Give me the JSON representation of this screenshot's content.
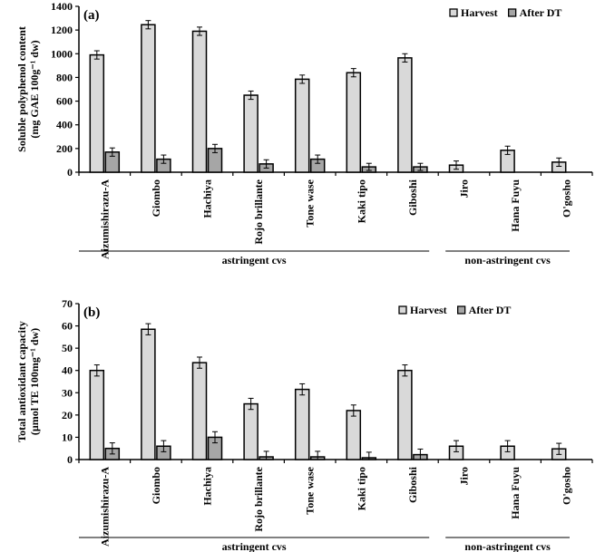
{
  "chart_data": [
    {
      "type": "bar",
      "panel_label": "(a)",
      "ylabel_line1": "Soluble polyphenol content",
      "ylabel_line2": "(mg GAE 100g⁻¹ dw)",
      "ylim": [
        0,
        1400
      ],
      "yticks": [
        0,
        200,
        400,
        600,
        800,
        1000,
        1200,
        1400
      ],
      "legend_position": "top-right",
      "categories": [
        "Aizumishirazu-A",
        "Giombo",
        "Hachiya",
        "Rojo brillante",
        "Tone wase",
        "Kaki tipo",
        "Giboshi",
        "Jiro",
        "Hana Fuyu",
        "O'gosho"
      ],
      "groups": [
        {
          "label": "astringent cvs",
          "from": 0,
          "to": 6
        },
        {
          "label": "non-astringent cvs",
          "from": 7,
          "to": 9
        }
      ],
      "series": [
        {
          "name": "Harvest",
          "color": "#d9d9d9",
          "values": [
            990,
            1245,
            1190,
            650,
            785,
            840,
            965,
            60,
            185,
            85
          ],
          "errors": [
            35,
            35,
            35,
            35,
            35,
            35,
            35,
            35,
            35,
            35
          ]
        },
        {
          "name": "After DT",
          "color": "#a6a6a6",
          "values": [
            170,
            110,
            200,
            70,
            110,
            45,
            45,
            null,
            null,
            null
          ],
          "errors": [
            35,
            35,
            35,
            35,
            35,
            30,
            30,
            null,
            null,
            null
          ]
        }
      ]
    },
    {
      "type": "bar",
      "panel_label": "(b)",
      "ylabel_line1": "Total antioxidant capacity",
      "ylabel_line2": "(µmol TE 100mg⁻¹ dw)",
      "ylim": [
        0,
        70
      ],
      "yticks": [
        0,
        10,
        20,
        30,
        40,
        50,
        60,
        70
      ],
      "legend_position": "top-right",
      "categories": [
        "Aizumishirazu-A",
        "Giombo",
        "Hachiya",
        "Rojo brillante",
        "Tone wase",
        "Kaki tipo",
        "Giboshi",
        "Jiro",
        "Hana Fuyu",
        "O'gosho"
      ],
      "groups": [
        {
          "label": "astringent cvs",
          "from": 0,
          "to": 6
        },
        {
          "label": "non-astringent cvs",
          "from": 7,
          "to": 9
        }
      ],
      "series": [
        {
          "name": "Harvest",
          "color": "#d9d9d9",
          "values": [
            40,
            58.5,
            43.5,
            25,
            31.5,
            22,
            40,
            6,
            6,
            4.8
          ],
          "errors": [
            2.5,
            2.5,
            2.5,
            2.5,
            2.5,
            2.5,
            2.5,
            2.5,
            2.5,
            2.5
          ]
        },
        {
          "name": "After DT",
          "color": "#a6a6a6",
          "values": [
            5,
            6,
            10,
            1.2,
            1.2,
            0.8,
            2.2,
            null,
            null,
            null
          ],
          "errors": [
            2.5,
            2.5,
            2.5,
            2.5,
            2.5,
            2.5,
            2.5,
            null,
            null,
            null
          ]
        }
      ]
    }
  ]
}
